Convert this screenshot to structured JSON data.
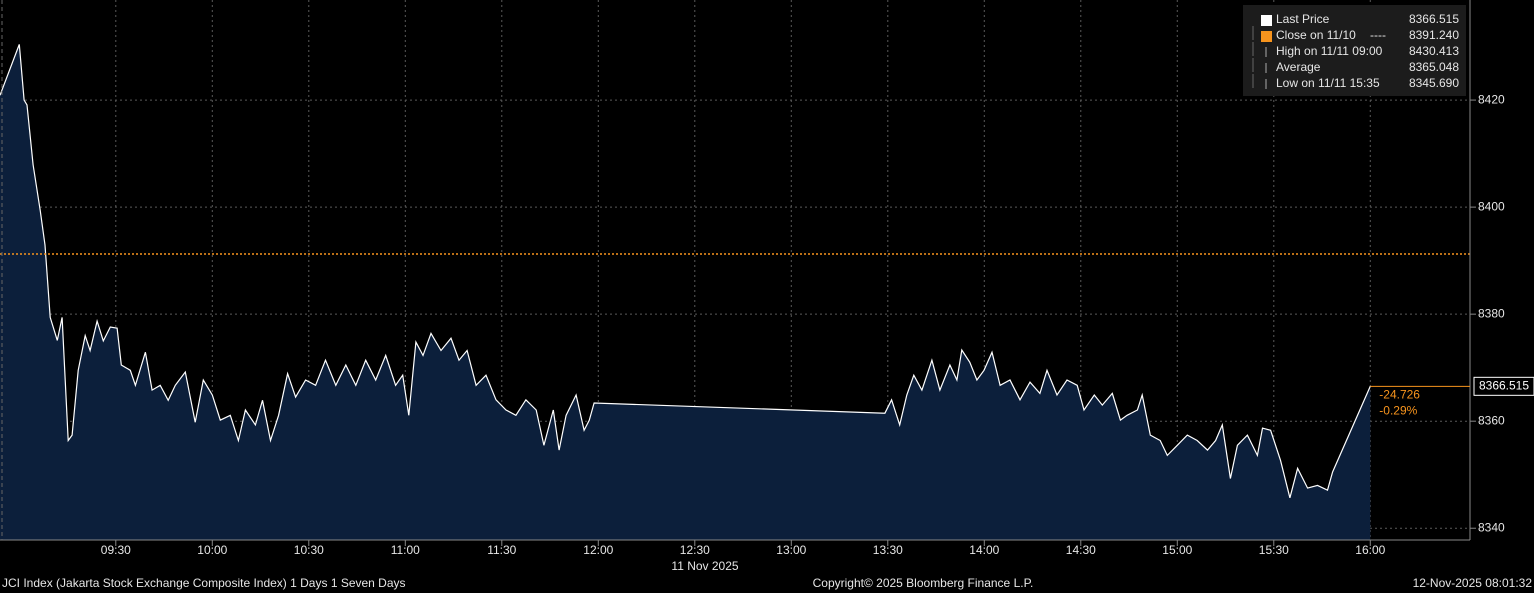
{
  "chart_data": {
    "type": "area",
    "series": [
      {
        "name": "Last Price",
        "color": "#ffffff",
        "fill": "#0c1f3b",
        "x": [
          534,
          540,
          541.5,
          542.4,
          544.3,
          546.5,
          548,
          549.6,
          551.8,
          553.3,
          555.2,
          556.4,
          558.3,
          560.5,
          562,
          564.2,
          566.1,
          568.3,
          570.4,
          571.7,
          574.5,
          576.1,
          579.2,
          581.3,
          583.8,
          586.3,
          588.5,
          591.6,
          594.7,
          597.2,
          600,
          602.5,
          605.6,
          608.1,
          610.3,
          613.4,
          615.6,
          618.1,
          620.6,
          623.4,
          625.9,
          629,
          632.1,
          635.2,
          638.4,
          641.5,
          644.6,
          647.7,
          650.8,
          653.9,
          657,
          659.2,
          661.1,
          663.3,
          665.5,
          668,
          671.1,
          674.2,
          676.7,
          679.2,
          682,
          685.1,
          688.2,
          691.3,
          694.4,
          697.5,
          700.7,
          703.1,
          706,
          707.8,
          710,
          713.1,
          715.6,
          717.2,
          718.7,
          809.1,
          811.2,
          813.7,
          815.9,
          818.1,
          820.6,
          823.7,
          826.2,
          829.3,
          831.5,
          833,
          835.5,
          837.7,
          839.9,
          842.4,
          844.9,
          848,
          851.1,
          854.2,
          857.3,
          859.5,
          862.6,
          865.7,
          868.9,
          871,
          874.2,
          876.7,
          879.8,
          882.3,
          884.4,
          887.6,
          889.1,
          891.6,
          894.7,
          896.9,
          900,
          903.1,
          906.2,
          909.4,
          911.9,
          914,
          916.5,
          918.7,
          921.8,
          924.9,
          926.5,
          929,
          932.1,
          935,
          937.4,
          940.5,
          943.6,
          946.7,
          948.3,
          960
        ],
        "values": [
          8420.9,
          8430.413,
          8420,
          8419.1,
          8407.9,
          8399.4,
          8392.9,
          8379.4,
          8375.1,
          8379.4,
          8356.4,
          8357.4,
          8369.5,
          8376,
          8373.2,
          8378.7,
          8375,
          8377.6,
          8377.4,
          8370.5,
          8369.5,
          8366.7,
          8372.9,
          8365.8,
          8366.7,
          8363.9,
          8366.7,
          8369.2,
          8359.8,
          8367.7,
          8364.9,
          8360.2,
          8361.1,
          8356.4,
          8362.1,
          8359.3,
          8363.9,
          8356.4,
          8361.1,
          8368.9,
          8364.5,
          8367.7,
          8366.7,
          8371.4,
          8366.7,
          8370.5,
          8366.7,
          8371.4,
          8367.7,
          8372.3,
          8366.7,
          8368.6,
          8361.1,
          8374.8,
          8372.3,
          8376.4,
          8373.2,
          8375.5,
          8371.4,
          8373.2,
          8366.7,
          8368.6,
          8364,
          8362.1,
          8361.1,
          8364,
          8362.1,
          8355.5,
          8362.1,
          8354.6,
          8361.1,
          8364.9,
          8358.3,
          8360.2,
          8363.4,
          8361.5,
          8364,
          8359.3,
          8364.9,
          8368.6,
          8365.8,
          8371.4,
          8365.8,
          8370.5,
          8367.7,
          8373.3,
          8371,
          8367.7,
          8369.5,
          8372.9,
          8366.7,
          8367.7,
          8364,
          8367.3,
          8365.2,
          8369.5,
          8364.9,
          8367.7,
          8366.7,
          8362.1,
          8364.9,
          8363,
          8365.2,
          8360.2,
          8361.1,
          8362.1,
          8364.9,
          8357.4,
          8356.4,
          8353.6,
          8355.5,
          8357.4,
          8356.4,
          8354.6,
          8356.4,
          8359.3,
          8349.3,
          8355.5,
          8357.4,
          8353.6,
          8358.7,
          8358.3,
          8352.7,
          8345.69,
          8351.2,
          8347.5,
          8348,
          8347.1,
          8350.5,
          8366.515
        ]
      }
    ],
    "legend": [
      {
        "name": "Close on 11/10",
        "line": "----",
        "color": "#f7941d",
        "value": {
          "value": 8391.24,
          "label": "8391.240"
        }
      },
      {
        "name": "High on 11/11 09:00",
        "value": 8430.413
      },
      {
        "name": "Average",
        "value": 8365.048
      },
      {
        "name": "Low on 11/11 15:35",
        "value": {
          "value": 8345.69,
          "label": "8345.690"
        }
      }
    ],
    "change": -24.726,
    "change_pct": {
      "value": -0.29,
      "label": "-0.29%"
    },
    "xlim": [
      534,
      991
    ],
    "ylim": [
      8337.8,
      8438.7
    ],
    "xticks": [
      {
        "value": 570,
        "label": "09:30"
      },
      {
        "value": 600,
        "label": "10:00"
      },
      {
        "value": 630,
        "label": "10:30"
      },
      {
        "value": 660,
        "label": "11:00"
      },
      {
        "value": 690,
        "label": "11:30"
      },
      {
        "value": 720,
        "label": "12:00"
      },
      {
        "value": 750,
        "label": "12:30"
      },
      {
        "value": 780,
        "label": "13:00"
      },
      {
        "value": 810,
        "label": "13:30"
      },
      {
        "value": 840,
        "label": "14:00"
      },
      {
        "value": 870,
        "label": "14:30"
      },
      {
        "value": 900,
        "label": "15:00"
      },
      {
        "value": 930,
        "label": "15:30"
      },
      {
        "value": 960,
        "label": "16:00"
      }
    ],
    "yticks": [
      8340,
      8360,
      8380,
      8400,
      8420
    ],
    "grid": true,
    "date_label": "11 Nov 2025",
    "footer_left": "JCI Index (Jakarta Stock Exchange Composite Index) 1 Days 1 Seven Days",
    "footer_center": "Copyright© 2025 Bloomberg Finance L.P.",
    "footer_right": "12-Nov-2025 08:01:32"
  }
}
